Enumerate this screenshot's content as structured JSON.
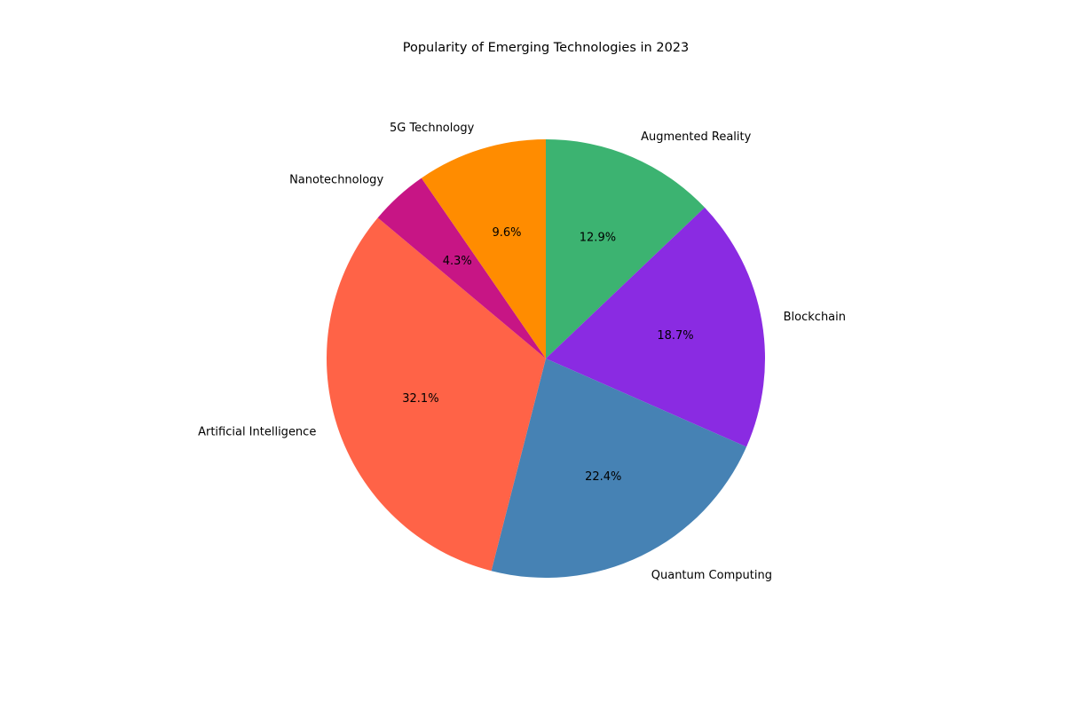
{
  "chart_data": {
    "type": "pie",
    "title": "Popularity of Emerging Technologies in 2023",
    "start_angle_deg": 90,
    "direction": "clockwise",
    "slices": [
      {
        "label": "Augmented Reality",
        "value": 12.9,
        "pct_label": "12.9%",
        "color": "#3CB371"
      },
      {
        "label": "Blockchain",
        "value": 18.7,
        "pct_label": "18.7%",
        "color": "#8A2BE2"
      },
      {
        "label": "Quantum Computing",
        "value": 22.4,
        "pct_label": "22.4%",
        "color": "#4682B4"
      },
      {
        "label": "Artificial Intelligence",
        "value": 32.1,
        "pct_label": "32.1%",
        "color": "#FF6347"
      },
      {
        "label": "Nanotechnology",
        "value": 4.3,
        "pct_label": "4.3%",
        "color": "#C71585"
      },
      {
        "label": "5G Technology",
        "value": 9.6,
        "pct_label": "9.6%",
        "color": "#FF8C00"
      }
    ]
  }
}
